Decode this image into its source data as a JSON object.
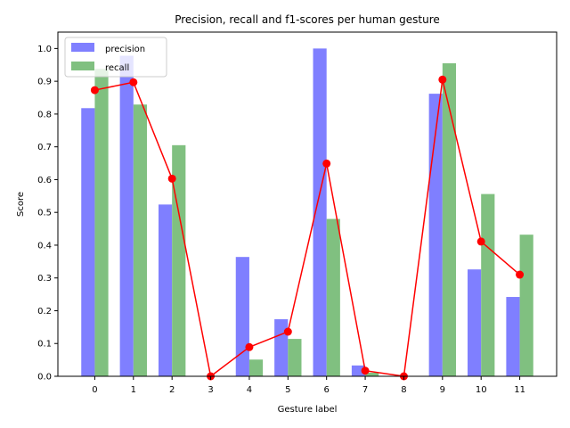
{
  "chart_data": {
    "type": "bar",
    "title": "Precision, recall and f1-scores per human gesture",
    "xlabel": "Gesture label",
    "ylabel": "Score",
    "categories": [
      "0",
      "1",
      "2",
      "3",
      "4",
      "5",
      "6",
      "7",
      "8",
      "9",
      "10",
      "11"
    ],
    "ylim": [
      0,
      1.05
    ],
    "yticks": [
      "0.0",
      "0.1",
      "0.2",
      "0.3",
      "0.4",
      "0.5",
      "0.6",
      "0.7",
      "0.8",
      "0.9",
      "1.0"
    ],
    "grid": false,
    "legend_position": "top-left",
    "series": [
      {
        "name": "precision",
        "type": "bar",
        "color": "#7f7fff",
        "values": [
          0.818,
          0.978,
          0.524,
          0.0,
          0.364,
          0.174,
          1.0,
          0.033,
          0.0,
          0.862,
          0.326,
          0.242
        ]
      },
      {
        "name": "recall",
        "type": "bar",
        "color": "#80c080",
        "values": [
          0.938,
          0.829,
          0.705,
          0.0,
          0.051,
          0.114,
          0.48,
          0.011,
          0.0,
          0.955,
          0.556,
          0.432
        ]
      },
      {
        "type": "line",
        "color": "#ff0000",
        "values": [
          0.873,
          0.897,
          0.603,
          0.0,
          0.089,
          0.136,
          0.649,
          0.017,
          0.0,
          0.905,
          0.411,
          0.31
        ]
      }
    ]
  }
}
